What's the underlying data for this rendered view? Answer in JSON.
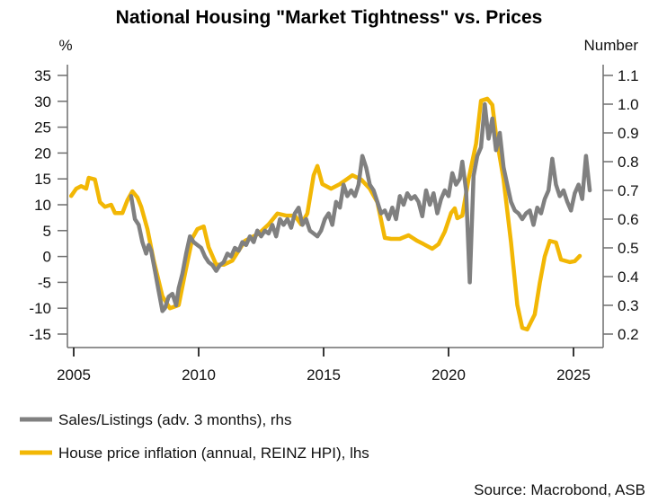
{
  "chart_data": {
    "type": "line",
    "title": "National Housing \"Market Tightness\" vs. Prices",
    "left_axis": {
      "label": "%",
      "ylim": [
        -15,
        35
      ],
      "ticks": [
        -15,
        -10,
        -5,
        0,
        5,
        10,
        15,
        20,
        25,
        30,
        35
      ],
      "tick_labels": [
        "-15",
        "-10",
        "-5",
        "0",
        "5",
        "10",
        "15",
        "20",
        "25",
        "30",
        "35"
      ]
    },
    "right_axis": {
      "label": "Number",
      "ylim": [
        0.2,
        1.1
      ],
      "ticks": [
        0.2,
        0.3,
        0.4,
        0.5,
        0.6,
        0.7,
        0.8,
        0.9,
        1.0,
        1.1
      ],
      "tick_labels": [
        "0.2",
        "0.3",
        "0.4",
        "0.5",
        "0.6",
        "0.7",
        "0.8",
        "0.9",
        "1.0",
        "1.1"
      ]
    },
    "x_axis": {
      "xlim": [
        2004.9,
        2026.2
      ],
      "ticks": [
        2005,
        2010,
        2015,
        2020,
        2025
      ],
      "tick_labels": [
        "2005",
        "2010",
        "2015",
        "2020",
        "2025"
      ]
    },
    "grid": false,
    "legend_position": "bottom-left",
    "series": [
      {
        "name": "Sales/Listings (adv. 3 months), rhs",
        "axis": "right",
        "color": "#808080",
        "x": [
          2007.3,
          2007.45,
          2007.6,
          2007.75,
          2007.9,
          2008.0,
          2008.1,
          2008.25,
          2008.4,
          2008.55,
          2008.65,
          2008.8,
          2008.95,
          2009.1,
          2009.2,
          2009.35,
          2009.5,
          2009.65,
          2009.8,
          2009.95,
          2010.1,
          2010.25,
          2010.4,
          2010.55,
          2010.7,
          2010.85,
          2011.0,
          2011.15,
          2011.3,
          2011.45,
          2011.6,
          2011.75,
          2011.9,
          2012.05,
          2012.2,
          2012.35,
          2012.5,
          2012.65,
          2012.8,
          2012.95,
          2013.1,
          2013.25,
          2013.4,
          2013.55,
          2013.7,
          2013.85,
          2014.0,
          2014.15,
          2014.3,
          2014.45,
          2014.6,
          2014.75,
          2014.9,
          2015.05,
          2015.2,
          2015.35,
          2015.5,
          2015.65,
          2015.8,
          2015.95,
          2016.1,
          2016.25,
          2016.4,
          2016.55,
          2016.7,
          2016.85,
          2017.0,
          2017.15,
          2017.3,
          2017.45,
          2017.6,
          2017.75,
          2017.9,
          2018.05,
          2018.2,
          2018.35,
          2018.5,
          2018.65,
          2018.8,
          2018.95,
          2019.1,
          2019.25,
          2019.4,
          2019.55,
          2019.7,
          2019.85,
          2020.0,
          2020.15,
          2020.3,
          2020.45,
          2020.55,
          2020.7,
          2020.85,
          2021.0,
          2021.15,
          2021.3,
          2021.45,
          2021.6,
          2021.75,
          2021.9,
          2022.05,
          2022.2,
          2022.35,
          2022.5,
          2022.65,
          2022.8,
          2022.95,
          2023.1,
          2023.25,
          2023.4,
          2023.55,
          2023.7,
          2023.85,
          2024.0,
          2024.15,
          2024.3,
          2024.45,
          2024.6,
          2024.75,
          2024.9,
          2025.05,
          2025.2,
          2025.35,
          2025.5,
          2025.65
        ],
        "values": [
          0.68,
          0.6,
          0.58,
          0.52,
          0.48,
          0.51,
          0.49,
          0.42,
          0.35,
          0.28,
          0.29,
          0.33,
          0.34,
          0.3,
          0.36,
          0.41,
          0.48,
          0.54,
          0.52,
          0.51,
          0.5,
          0.47,
          0.45,
          0.44,
          0.42,
          0.44,
          0.45,
          0.48,
          0.47,
          0.5,
          0.49,
          0.52,
          0.51,
          0.54,
          0.52,
          0.56,
          0.54,
          0.56,
          0.55,
          0.58,
          0.54,
          0.6,
          0.58,
          0.6,
          0.57,
          0.62,
          0.64,
          0.58,
          0.6,
          0.56,
          0.55,
          0.54,
          0.56,
          0.6,
          0.62,
          0.58,
          0.66,
          0.64,
          0.72,
          0.68,
          0.7,
          0.68,
          0.72,
          0.82,
          0.78,
          0.72,
          0.7,
          0.66,
          0.62,
          0.63,
          0.6,
          0.64,
          0.6,
          0.68,
          0.65,
          0.69,
          0.67,
          0.68,
          0.66,
          0.61,
          0.7,
          0.65,
          0.69,
          0.62,
          0.67,
          0.7,
          0.68,
          0.76,
          0.72,
          0.74,
          0.8,
          0.7,
          0.38,
          0.75,
          0.82,
          0.85,
          1.0,
          0.88,
          0.95,
          0.84,
          0.9,
          0.78,
          0.72,
          0.66,
          0.63,
          0.62,
          0.6,
          0.62,
          0.63,
          0.58,
          0.64,
          0.62,
          0.67,
          0.7,
          0.81,
          0.72,
          0.68,
          0.7,
          0.66,
          0.63,
          0.69,
          0.72,
          0.67,
          0.82,
          0.7
        ],
        "note": "values estimated from the figure"
      },
      {
        "name": "House price inflation (annual, REINZ HPI), lhs",
        "axis": "left",
        "color": "#F2B705",
        "x": [
          2004.9,
          2005.1,
          2005.3,
          2005.5,
          2005.6,
          2005.85,
          2006.05,
          2006.25,
          2006.5,
          2006.65,
          2006.95,
          2007.15,
          2007.35,
          2007.55,
          2007.7,
          2007.95,
          2008.2,
          2008.55,
          2008.85,
          2009.2,
          2009.45,
          2009.75,
          2009.95,
          2010.2,
          2010.4,
          2010.7,
          2011.0,
          2011.35,
          2011.85,
          2012.4,
          2012.8,
          2013.15,
          2013.5,
          2013.85,
          2014.1,
          2014.35,
          2014.6,
          2014.75,
          2014.95,
          2015.3,
          2015.65,
          2016.15,
          2016.5,
          2016.85,
          2017.15,
          2017.45,
          2017.7,
          2018.05,
          2018.4,
          2018.75,
          2019.0,
          2019.35,
          2019.6,
          2019.85,
          2020.1,
          2020.25,
          2020.35,
          2020.55,
          2020.8,
          2021.1,
          2021.3,
          2021.55,
          2021.75,
          2021.9,
          2022.2,
          2022.5,
          2022.75,
          2022.95,
          2023.15,
          2023.45,
          2023.65,
          2023.85,
          2024.05,
          2024.3,
          2024.5,
          2024.85,
          2025.05,
          2025.25
        ],
        "values": [
          11.7,
          13.1,
          13.6,
          13.1,
          15.2,
          14.9,
          10.5,
          9.6,
          10.0,
          8.4,
          8.4,
          10.9,
          12.6,
          11.4,
          9.6,
          5.3,
          -0.8,
          -7.7,
          -10.0,
          -9.4,
          -3.4,
          3.6,
          5.3,
          5.8,
          1.8,
          -1.6,
          -1.6,
          -0.8,
          3.0,
          4.4,
          6.2,
          8.3,
          7.9,
          7.9,
          6.2,
          8.3,
          15.7,
          17.5,
          14.0,
          13.1,
          14.0,
          15.7,
          14.9,
          13.1,
          10.5,
          3.6,
          3.4,
          3.4,
          4.1,
          3.0,
          2.4,
          1.5,
          2.4,
          4.8,
          8.4,
          9.3,
          7.4,
          7.9,
          14.9,
          21.8,
          30.1,
          30.5,
          29.3,
          23.5,
          14.9,
          2.7,
          -9.4,
          -13.8,
          -14.1,
          -11.2,
          -5.1,
          0.0,
          3.0,
          2.7,
          -0.6,
          -1.1,
          -0.9,
          0.1
        ],
        "note": "values estimated from the figure"
      }
    ],
    "legend": [
      {
        "label": "Sales/Listings (adv. 3 months), rhs",
        "color": "#808080"
      },
      {
        "label": "House price inflation (annual, REINZ HPI), lhs",
        "color": "#F2B705"
      }
    ],
    "source": "Source: Macrobond, ASB"
  }
}
